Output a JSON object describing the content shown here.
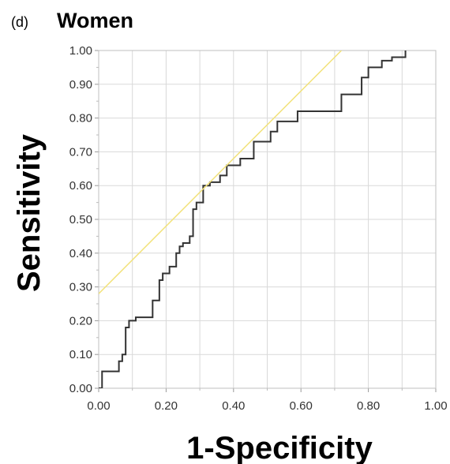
{
  "chart_data": {
    "type": "line",
    "panel_label": "(d)",
    "title": "Women",
    "xlabel": "1-Specificity",
    "ylabel": "Sensitivity",
    "xlim": [
      0,
      1
    ],
    "ylim": [
      0,
      1
    ],
    "x_ticks": [
      "0.00",
      "0.20",
      "0.40",
      "0.60",
      "0.80",
      "1.00"
    ],
    "y_ticks": [
      "0.00",
      "0.10",
      "0.20",
      "0.30",
      "0.40",
      "0.50",
      "0.60",
      "0.70",
      "0.80",
      "0.90",
      "1.00"
    ],
    "grid": true,
    "series": [
      {
        "color": "#333333",
        "step": true,
        "x": [
          0.0,
          0.01,
          0.06,
          0.07,
          0.08,
          0.09,
          0.11,
          0.16,
          0.18,
          0.19,
          0.21,
          0.23,
          0.24,
          0.25,
          0.27,
          0.28,
          0.29,
          0.3,
          0.31,
          0.33,
          0.36,
          0.38,
          0.42,
          0.46,
          0.51,
          0.53,
          0.59,
          0.72,
          0.78,
          0.8,
          0.84,
          0.87,
          0.91
        ],
        "y": [
          0.0,
          0.05,
          0.08,
          0.1,
          0.18,
          0.2,
          0.21,
          0.26,
          0.32,
          0.34,
          0.36,
          0.4,
          0.42,
          0.43,
          0.45,
          0.53,
          0.55,
          0.55,
          0.6,
          0.61,
          0.63,
          0.66,
          0.68,
          0.73,
          0.76,
          0.79,
          0.82,
          0.87,
          0.92,
          0.95,
          0.97,
          0.98,
          1.0
        ]
      },
      {
        "color": "#f2e27a",
        "x": [
          0.0,
          0.72
        ],
        "y": [
          0.28,
          1.0
        ]
      }
    ]
  }
}
